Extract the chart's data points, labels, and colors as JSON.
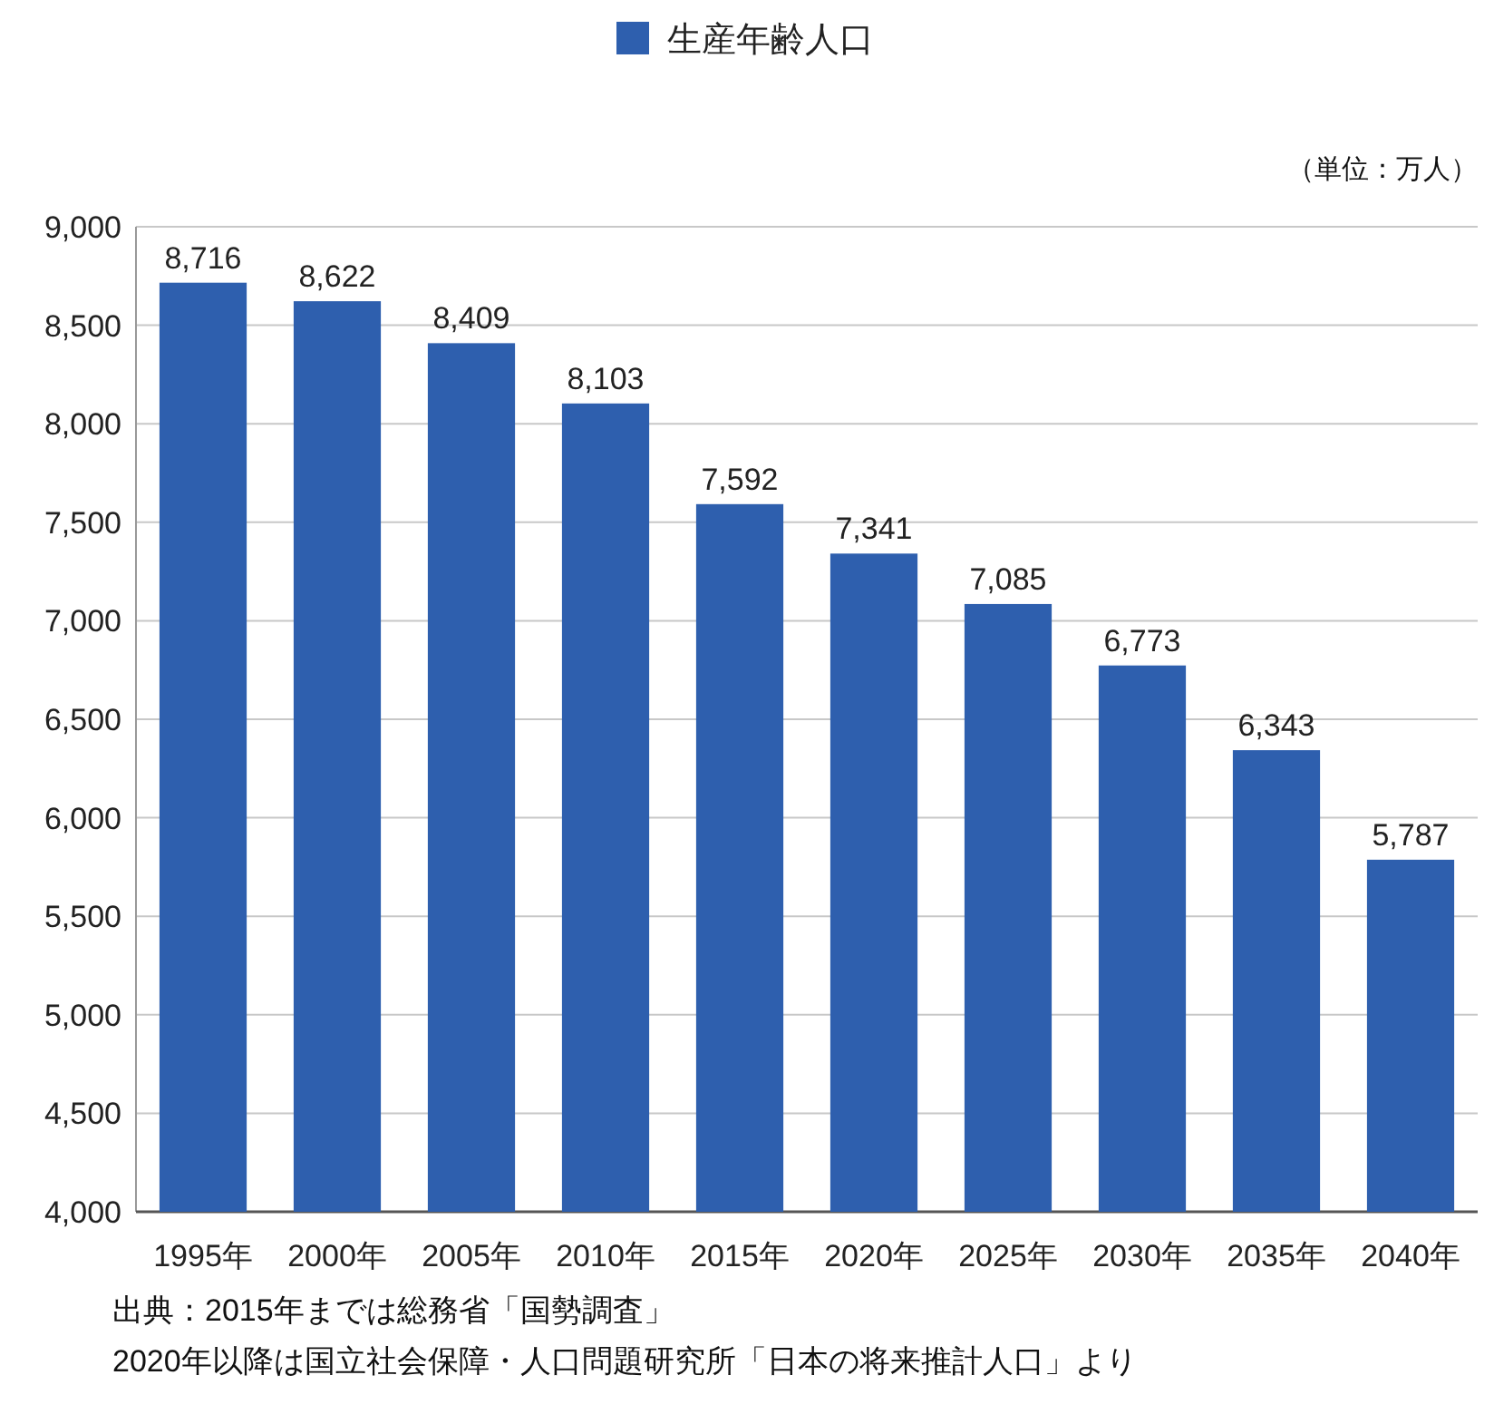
{
  "chart_data": {
    "type": "bar",
    "categories": [
      "1995年",
      "2000年",
      "2005年",
      "2010年",
      "2015年",
      "2020年",
      "2025年",
      "2030年",
      "2035年",
      "2040年"
    ],
    "series": [
      {
        "name": "生産年齢人口",
        "color": "#2e5fae",
        "values": [
          8716,
          8622,
          8409,
          8103,
          7592,
          7341,
          7085,
          6773,
          6343,
          5787
        ],
        "value_labels": [
          "8,716",
          "8,622",
          "8,409",
          "8,103",
          "7,592",
          "7,341",
          "7,085",
          "6,773",
          "6,343",
          "5,787"
        ]
      }
    ],
    "ylim": [
      4000,
      9000
    ],
    "yticks": [
      {
        "value": 4000,
        "label": "4,000"
      },
      {
        "value": 4500,
        "label": "4,500"
      },
      {
        "value": 5000,
        "label": "5,000"
      },
      {
        "value": 5500,
        "label": "5,500"
      },
      {
        "value": 6000,
        "label": "6,000"
      },
      {
        "value": 6500,
        "label": "6,500"
      },
      {
        "value": 7000,
        "label": "7,000"
      },
      {
        "value": 7500,
        "label": "7,500"
      },
      {
        "value": 8000,
        "label": "8,000"
      },
      {
        "value": 8500,
        "label": "8,500"
      },
      {
        "value": 9000,
        "label": "9,000"
      }
    ],
    "grid": "y",
    "legend": "top",
    "annotations": [
      "（単位：万人）",
      "出典：2015年までは総務省「国勢調査」",
      "2020年以降は国立社会保障・人口問題研究所「日本の将来推計人口」より"
    ]
  }
}
